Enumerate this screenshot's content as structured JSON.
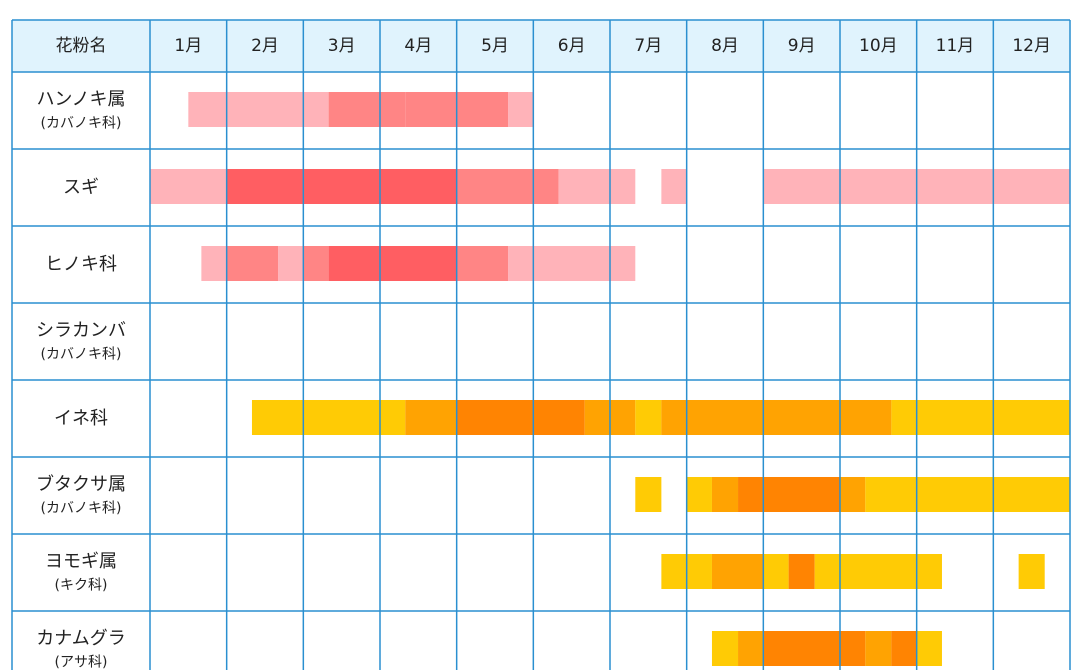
{
  "chart_data": {
    "type": "heatmap",
    "header": {
      "name_label": "花粉名",
      "months": [
        "1月",
        "2月",
        "3月",
        "4月",
        "5月",
        "6月",
        "7月",
        "8月",
        "9月",
        "10月",
        "11月",
        "12月"
      ]
    },
    "intensity_scale": {
      "red": {
        "1": "#ffb3b9",
        "2": "#ff8585",
        "3": "#ff5e62"
      },
      "orange": {
        "1": "#ffcb05",
        "2": "#ffa302",
        "3": "#ff8402"
      }
    },
    "plants": [
      {
        "name": "ハンノキ属",
        "sub": "(カバノキ科)",
        "color": "red",
        "segments": [
          [
            0.5,
            2.33,
            1
          ],
          [
            2.33,
            3.33,
            2
          ],
          [
            3.33,
            4.67,
            2
          ],
          [
            4.67,
            5.0,
            1
          ]
        ]
      },
      {
        "name": "スギ",
        "sub": "",
        "color": "red",
        "segments": [
          [
            0.0,
            1.0,
            1
          ],
          [
            1.0,
            4.0,
            3
          ],
          [
            4.0,
            5.33,
            2
          ],
          [
            5.33,
            6.33,
            1
          ],
          [
            6.67,
            7.0,
            1
          ],
          [
            8.0,
            12.0,
            1
          ]
        ]
      },
      {
        "name": "ヒノキ科",
        "sub": "",
        "color": "red",
        "segments": [
          [
            0.67,
            1.0,
            1
          ],
          [
            1.0,
            1.67,
            2
          ],
          [
            1.67,
            2.0,
            1
          ],
          [
            2.0,
            2.33,
            2
          ],
          [
            2.33,
            4.0,
            3
          ],
          [
            4.0,
            4.67,
            2
          ],
          [
            4.67,
            6.33,
            1
          ]
        ]
      },
      {
        "name": "シラカンバ",
        "sub": "(カバノキ科)",
        "color": "red",
        "segments": []
      },
      {
        "name": "イネ科",
        "sub": "",
        "color": "orange",
        "segments": [
          [
            1.33,
            3.33,
            1
          ],
          [
            3.33,
            4.0,
            2
          ],
          [
            4.0,
            5.67,
            3
          ],
          [
            5.67,
            6.33,
            2
          ],
          [
            6.33,
            6.67,
            1
          ],
          [
            6.67,
            9.67,
            2
          ],
          [
            9.67,
            12.0,
            1
          ]
        ]
      },
      {
        "name": "ブタクサ属",
        "sub": "(カバノキ科)",
        "color": "orange",
        "segments": [
          [
            6.33,
            6.67,
            1
          ],
          [
            7.0,
            7.33,
            1
          ],
          [
            7.33,
            7.67,
            2
          ],
          [
            7.67,
            9.0,
            3
          ],
          [
            9.0,
            9.33,
            2
          ],
          [
            9.33,
            12.0,
            1
          ]
        ]
      },
      {
        "name": "ヨモギ属",
        "sub": "(キク科)",
        "color": "orange",
        "segments": [
          [
            6.67,
            7.33,
            1
          ],
          [
            7.33,
            8.0,
            2
          ],
          [
            8.0,
            8.33,
            1
          ],
          [
            8.33,
            8.67,
            3
          ],
          [
            8.67,
            10.33,
            1
          ],
          [
            11.33,
            11.67,
            1
          ]
        ]
      },
      {
        "name": "カナムグラ",
        "sub": "(アサ科)",
        "color": "orange",
        "segments": [
          [
            7.33,
            7.67,
            1
          ],
          [
            7.67,
            8.0,
            2
          ],
          [
            8.0,
            9.33,
            3
          ],
          [
            9.33,
            9.67,
            2
          ],
          [
            9.67,
            10.0,
            3
          ],
          [
            10.0,
            10.33,
            1
          ]
        ]
      }
    ]
  }
}
